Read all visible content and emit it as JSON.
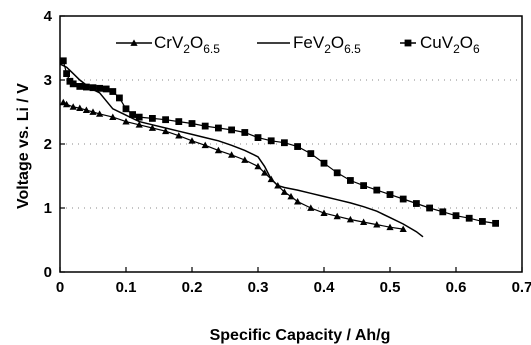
{
  "chart_data": {
    "type": "line",
    "xlabel": "Specific Capacity  /  Ah/g",
    "ylabel": "Voltage vs. Li / V",
    "xlim": [
      0,
      0.7
    ],
    "ylim": [
      0,
      4
    ],
    "x_ticks": [
      "0",
      "0.1",
      "0.2",
      "0.3",
      "0.4",
      "0.5",
      "0.6",
      "0.7"
    ],
    "y_ticks": [
      "0",
      "1",
      "2",
      "3",
      "4"
    ],
    "grid": "dotted",
    "legend_position": "top",
    "series": [
      {
        "name_main": "CrV",
        "name_sub1": "2",
        "name_mid": "O",
        "name_sub2": "6.5",
        "marker": "triangle",
        "color": "#000000",
        "x": [
          0.005,
          0.01,
          0.02,
          0.03,
          0.04,
          0.05,
          0.06,
          0.08,
          0.1,
          0.12,
          0.14,
          0.16,
          0.18,
          0.2,
          0.22,
          0.24,
          0.26,
          0.28,
          0.3,
          0.31,
          0.32,
          0.33,
          0.34,
          0.35,
          0.36,
          0.38,
          0.4,
          0.42,
          0.44,
          0.46,
          0.48,
          0.5,
          0.52
        ],
        "y": [
          2.65,
          2.62,
          2.58,
          2.56,
          2.53,
          2.5,
          2.47,
          2.42,
          2.35,
          2.3,
          2.25,
          2.2,
          2.13,
          2.05,
          1.98,
          1.9,
          1.83,
          1.75,
          1.65,
          1.55,
          1.45,
          1.35,
          1.25,
          1.18,
          1.1,
          1.0,
          0.92,
          0.87,
          0.82,
          0.78,
          0.74,
          0.7,
          0.67
        ]
      },
      {
        "name_main": "FeV",
        "name_sub1": "2",
        "name_mid": "O",
        "name_sub2": "6.5",
        "marker": "none",
        "color": "#000000",
        "x": [
          0.0,
          0.01,
          0.02,
          0.03,
          0.04,
          0.05,
          0.06,
          0.08,
          0.1,
          0.12,
          0.14,
          0.16,
          0.18,
          0.2,
          0.22,
          0.24,
          0.26,
          0.28,
          0.3,
          0.31,
          0.32,
          0.33,
          0.34,
          0.36,
          0.38,
          0.4,
          0.42,
          0.44,
          0.46,
          0.48,
          0.5,
          0.52,
          0.54,
          0.55
        ],
        "y": [
          3.25,
          3.2,
          3.1,
          3.0,
          2.92,
          2.85,
          2.8,
          2.55,
          2.45,
          2.35,
          2.3,
          2.25,
          2.2,
          2.15,
          2.1,
          2.05,
          1.98,
          1.9,
          1.8,
          1.65,
          1.45,
          1.35,
          1.32,
          1.28,
          1.23,
          1.18,
          1.13,
          1.08,
          1.02,
          0.95,
          0.85,
          0.75,
          0.63,
          0.55
        ]
      },
      {
        "name_main": "CuV",
        "name_sub1": "2",
        "name_mid": "O",
        "name_sub2": "6",
        "marker": "square",
        "color": "#000000",
        "x": [
          0.005,
          0.01,
          0.015,
          0.02,
          0.03,
          0.04,
          0.05,
          0.06,
          0.07,
          0.08,
          0.09,
          0.1,
          0.11,
          0.12,
          0.14,
          0.16,
          0.18,
          0.2,
          0.22,
          0.24,
          0.26,
          0.28,
          0.3,
          0.32,
          0.34,
          0.36,
          0.38,
          0.4,
          0.42,
          0.44,
          0.46,
          0.48,
          0.5,
          0.52,
          0.54,
          0.56,
          0.58,
          0.6,
          0.62,
          0.64,
          0.66
        ],
        "y": [
          3.3,
          3.1,
          2.98,
          2.94,
          2.9,
          2.89,
          2.88,
          2.87,
          2.86,
          2.82,
          2.72,
          2.55,
          2.46,
          2.42,
          2.4,
          2.38,
          2.35,
          2.32,
          2.28,
          2.25,
          2.22,
          2.18,
          2.1,
          2.05,
          2.02,
          1.96,
          1.85,
          1.7,
          1.55,
          1.43,
          1.35,
          1.28,
          1.21,
          1.14,
          1.07,
          1.0,
          0.94,
          0.88,
          0.84,
          0.79,
          0.76
        ]
      }
    ]
  }
}
